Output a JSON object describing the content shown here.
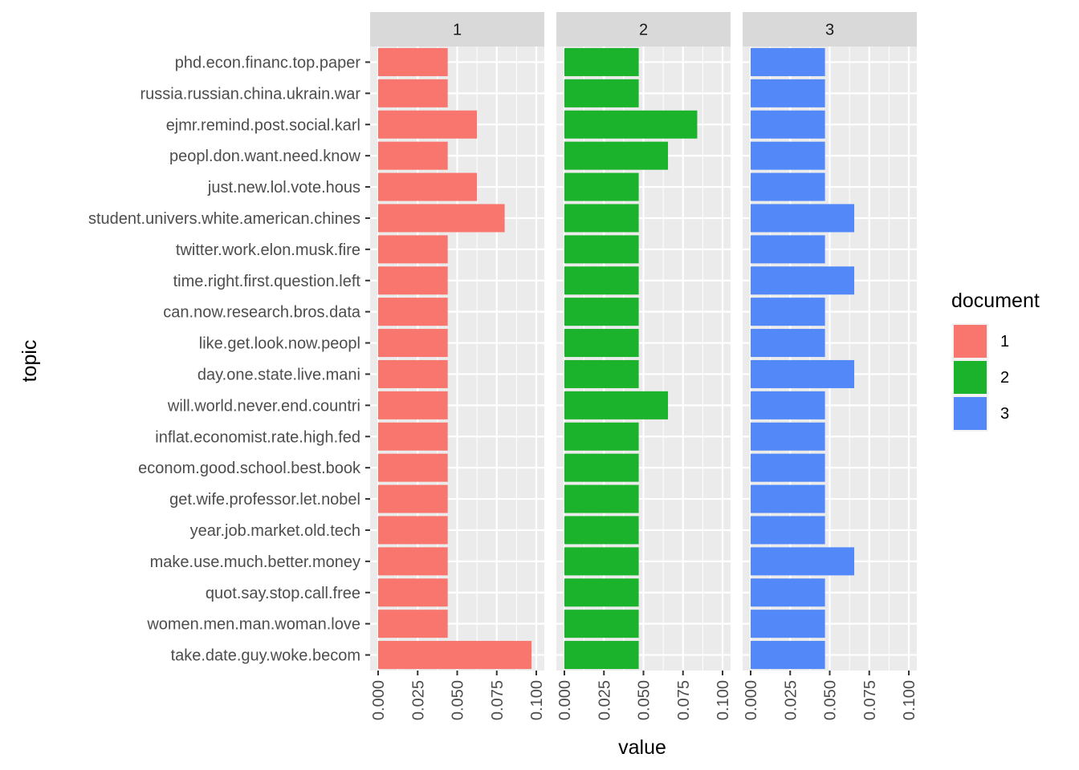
{
  "chart_data": {
    "type": "bar",
    "orientation": "horizontal",
    "facet_by": "document",
    "topics": [
      "phd.econ.financ.top.paper",
      "russia.russian.china.ukrain.war",
      "ejmr.remind.post.social.karl",
      "peopl.don.want.need.know",
      "just.new.lol.vote.hous",
      "student.univers.white.american.chines",
      "twitter.work.elon.musk.fire",
      "time.right.first.question.left",
      "can.now.research.bros.data",
      "like.get.look.now.peopl",
      "day.one.state.live.mani",
      "will.world.never.end.countri",
      "inflat.economist.rate.high.fed",
      "econom.good.school.best.book",
      "get.wife.professor.let.nobel",
      "year.job.market.old.tech",
      "make.use.much.better.money",
      "quot.say.stop.call.free",
      "women.men.man.woman.love",
      "take.date.guy.woke.becom"
    ],
    "panels": [
      {
        "label": "1",
        "color": "#F8766D",
        "values": [
          0.044,
          0.044,
          0.0625,
          0.044,
          0.0625,
          0.08,
          0.044,
          0.044,
          0.044,
          0.044,
          0.044,
          0.044,
          0.044,
          0.044,
          0.044,
          0.044,
          0.044,
          0.044,
          0.044,
          0.097
        ]
      },
      {
        "label": "2",
        "color": "#1CB32C",
        "values": [
          0.047,
          0.047,
          0.084,
          0.0655,
          0.047,
          0.047,
          0.047,
          0.047,
          0.047,
          0.047,
          0.047,
          0.0655,
          0.047,
          0.047,
          0.047,
          0.047,
          0.047,
          0.047,
          0.047,
          0.047
        ]
      },
      {
        "label": "3",
        "color": "#5288F8",
        "values": [
          0.047,
          0.047,
          0.047,
          0.047,
          0.047,
          0.0655,
          0.047,
          0.0655,
          0.047,
          0.047,
          0.0655,
          0.047,
          0.047,
          0.047,
          0.047,
          0.047,
          0.0655,
          0.047,
          0.047,
          0.047
        ]
      }
    ],
    "xticks": [
      "0.000",
      "0.025",
      "0.050",
      "0.075",
      "0.100"
    ],
    "xlim": [
      0,
      0.1
    ],
    "xlabel": "value",
    "ylabel": "topic",
    "grid": true,
    "legend": {
      "title": "document",
      "position": "right",
      "entries": [
        {
          "label": "1",
          "color": "#F8766D"
        },
        {
          "label": "2",
          "color": "#1CB32C"
        },
        {
          "label": "3",
          "color": "#5288F8"
        }
      ]
    }
  }
}
